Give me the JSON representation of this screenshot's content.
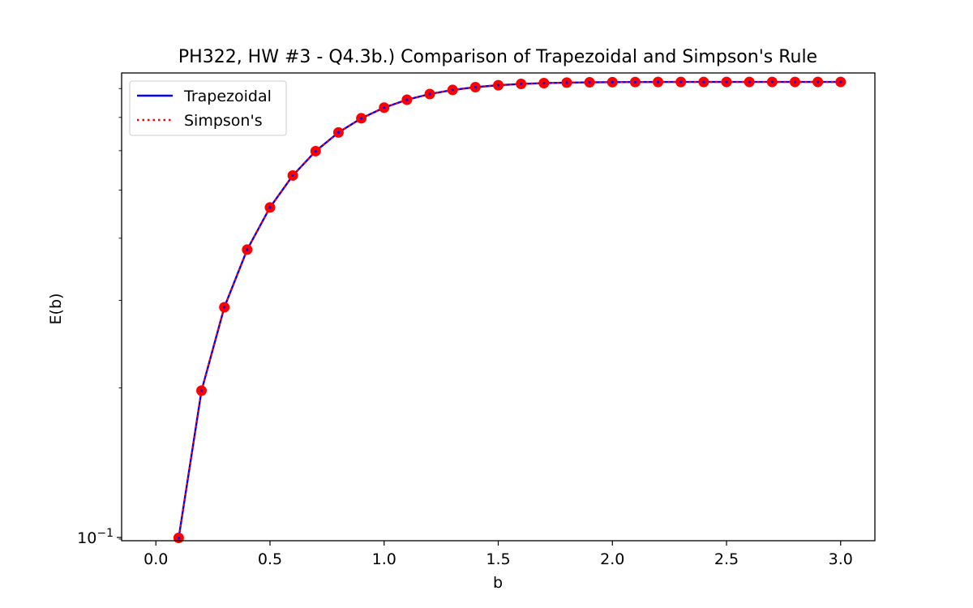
{
  "chart_data": {
    "type": "line",
    "title": "PH322, HW #3 - Q4.3b.) Comparison of Trapezoidal and Simpson's Rule",
    "xlabel": "b",
    "ylabel": "E(b)",
    "yscale": "log",
    "xlim": [
      -0.15,
      3.15
    ],
    "ylim": [
      0.0985,
      0.86
    ],
    "xticks": [
      0.0,
      0.5,
      1.0,
      1.5,
      2.0,
      2.5,
      3.0
    ],
    "xtick_labels": [
      "0.0",
      "0.5",
      "1.0",
      "1.5",
      "2.0",
      "2.5",
      "3.0"
    ],
    "yticks_major": [
      0.1
    ],
    "ytick_labels": [
      "10−1"
    ],
    "yticks_minor": [
      0.2,
      0.3,
      0.4,
      0.5,
      0.6,
      0.7,
      0.8
    ],
    "legend_position": "top-left",
    "grid": false,
    "x": [
      0.1,
      0.2,
      0.3,
      0.4,
      0.5,
      0.6,
      0.7,
      0.8,
      0.9,
      1.0,
      1.1,
      1.2,
      1.3,
      1.4,
      1.5,
      1.6,
      1.7,
      1.8,
      1.9,
      2.0,
      2.1,
      2.2,
      2.3,
      2.4,
      2.5,
      2.6,
      2.7,
      2.8,
      2.9,
      3.0
    ],
    "series": [
      {
        "name": "Trapezoidal",
        "color": "#0000ff",
        "style": "solid",
        "values": [
          0.0998,
          0.1974,
          0.2905,
          0.3794,
          0.4613,
          0.5349,
          0.5987,
          0.6528,
          0.6971,
          0.7324,
          0.7597,
          0.78,
          0.795,
          0.8053,
          0.8125,
          0.8174,
          0.8205,
          0.8224,
          0.8235,
          0.8242,
          0.8246,
          0.8248,
          0.8249,
          0.8249,
          0.825,
          0.825,
          0.825,
          0.825,
          0.825,
          0.825
        ]
      },
      {
        "name": "Simpson's",
        "color": "#ff0000",
        "style": "dotted",
        "values": [
          0.0998,
          0.1974,
          0.2905,
          0.3794,
          0.4613,
          0.5349,
          0.5987,
          0.6528,
          0.6971,
          0.7324,
          0.7597,
          0.78,
          0.795,
          0.8053,
          0.8125,
          0.8174,
          0.8205,
          0.8224,
          0.8235,
          0.8242,
          0.8246,
          0.8248,
          0.8249,
          0.8249,
          0.825,
          0.825,
          0.825,
          0.825,
          0.825,
          0.825
        ]
      }
    ],
    "marker_color": "#ff0000"
  }
}
